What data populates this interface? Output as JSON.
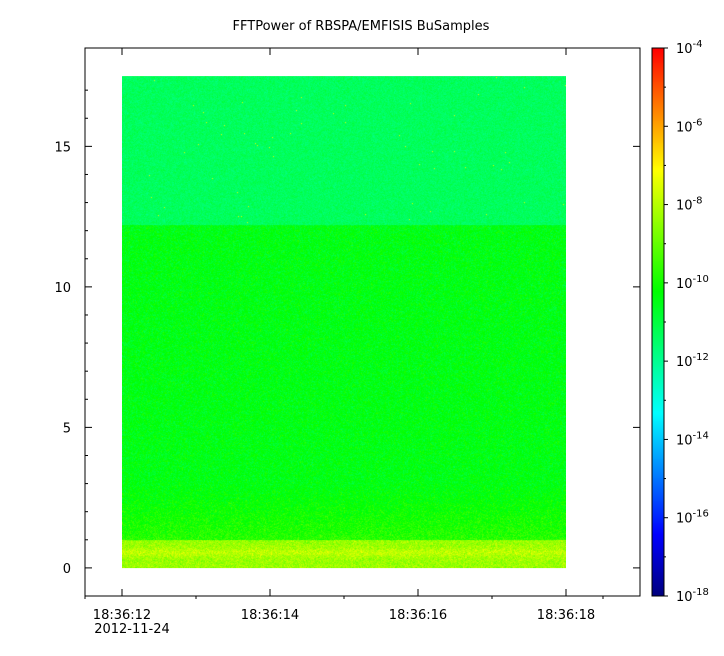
{
  "chart_data": {
    "type": "heatmap",
    "title": "FFTPower of RBSPA/EMFISIS  BuSamples",
    "xlabel": "",
    "ylabel": "",
    "x_ticks": [
      {
        "label": "18:36:12",
        "sub": "2012-11-24",
        "t": 12
      },
      {
        "label": "18:36:14",
        "sub": "",
        "t": 14
      },
      {
        "label": "18:36:16",
        "sub": "",
        "t": 16
      },
      {
        "label": "18:36:18",
        "sub": "",
        "t": 18
      }
    ],
    "x_minor_ticks": [
      11.5,
      13,
      15,
      17,
      18.5
    ],
    "xlim_seconds": [
      11.5,
      19.0
    ],
    "x_data_range_seconds": [
      12.0,
      18.0
    ],
    "y_ticks": [
      0,
      5,
      10,
      15
    ],
    "ylim": [
      -1.0,
      18.5
    ],
    "y_data_range": [
      0.0,
      17.5
    ],
    "colorbar": {
      "scale": "log",
      "range": [
        1e-18,
        0.0001
      ],
      "tick_exponents": [
        -4,
        -6,
        -8,
        -10,
        -12,
        -14,
        -16,
        -18
      ],
      "tick_base": "10",
      "colormap": [
        "#00007f",
        "#0000ff",
        "#007fff",
        "#00ffff",
        "#00ff80",
        "#00ff00",
        "#80ff00",
        "#ffff00",
        "#ff8000",
        "#ff0000"
      ]
    },
    "bands": [
      {
        "y_range": [
          12.2,
          17.5
        ],
        "log_power_mean": -11.4,
        "description_color": "#00f07a"
      },
      {
        "y_range": [
          1.0,
          12.2
        ],
        "log_power_mean": -10.3,
        "description_color": "#22e82a"
      },
      {
        "y_range": [
          0.0,
          1.0
        ],
        "log_power_mean": -8.4,
        "description_color": "#ffc800"
      }
    ]
  }
}
